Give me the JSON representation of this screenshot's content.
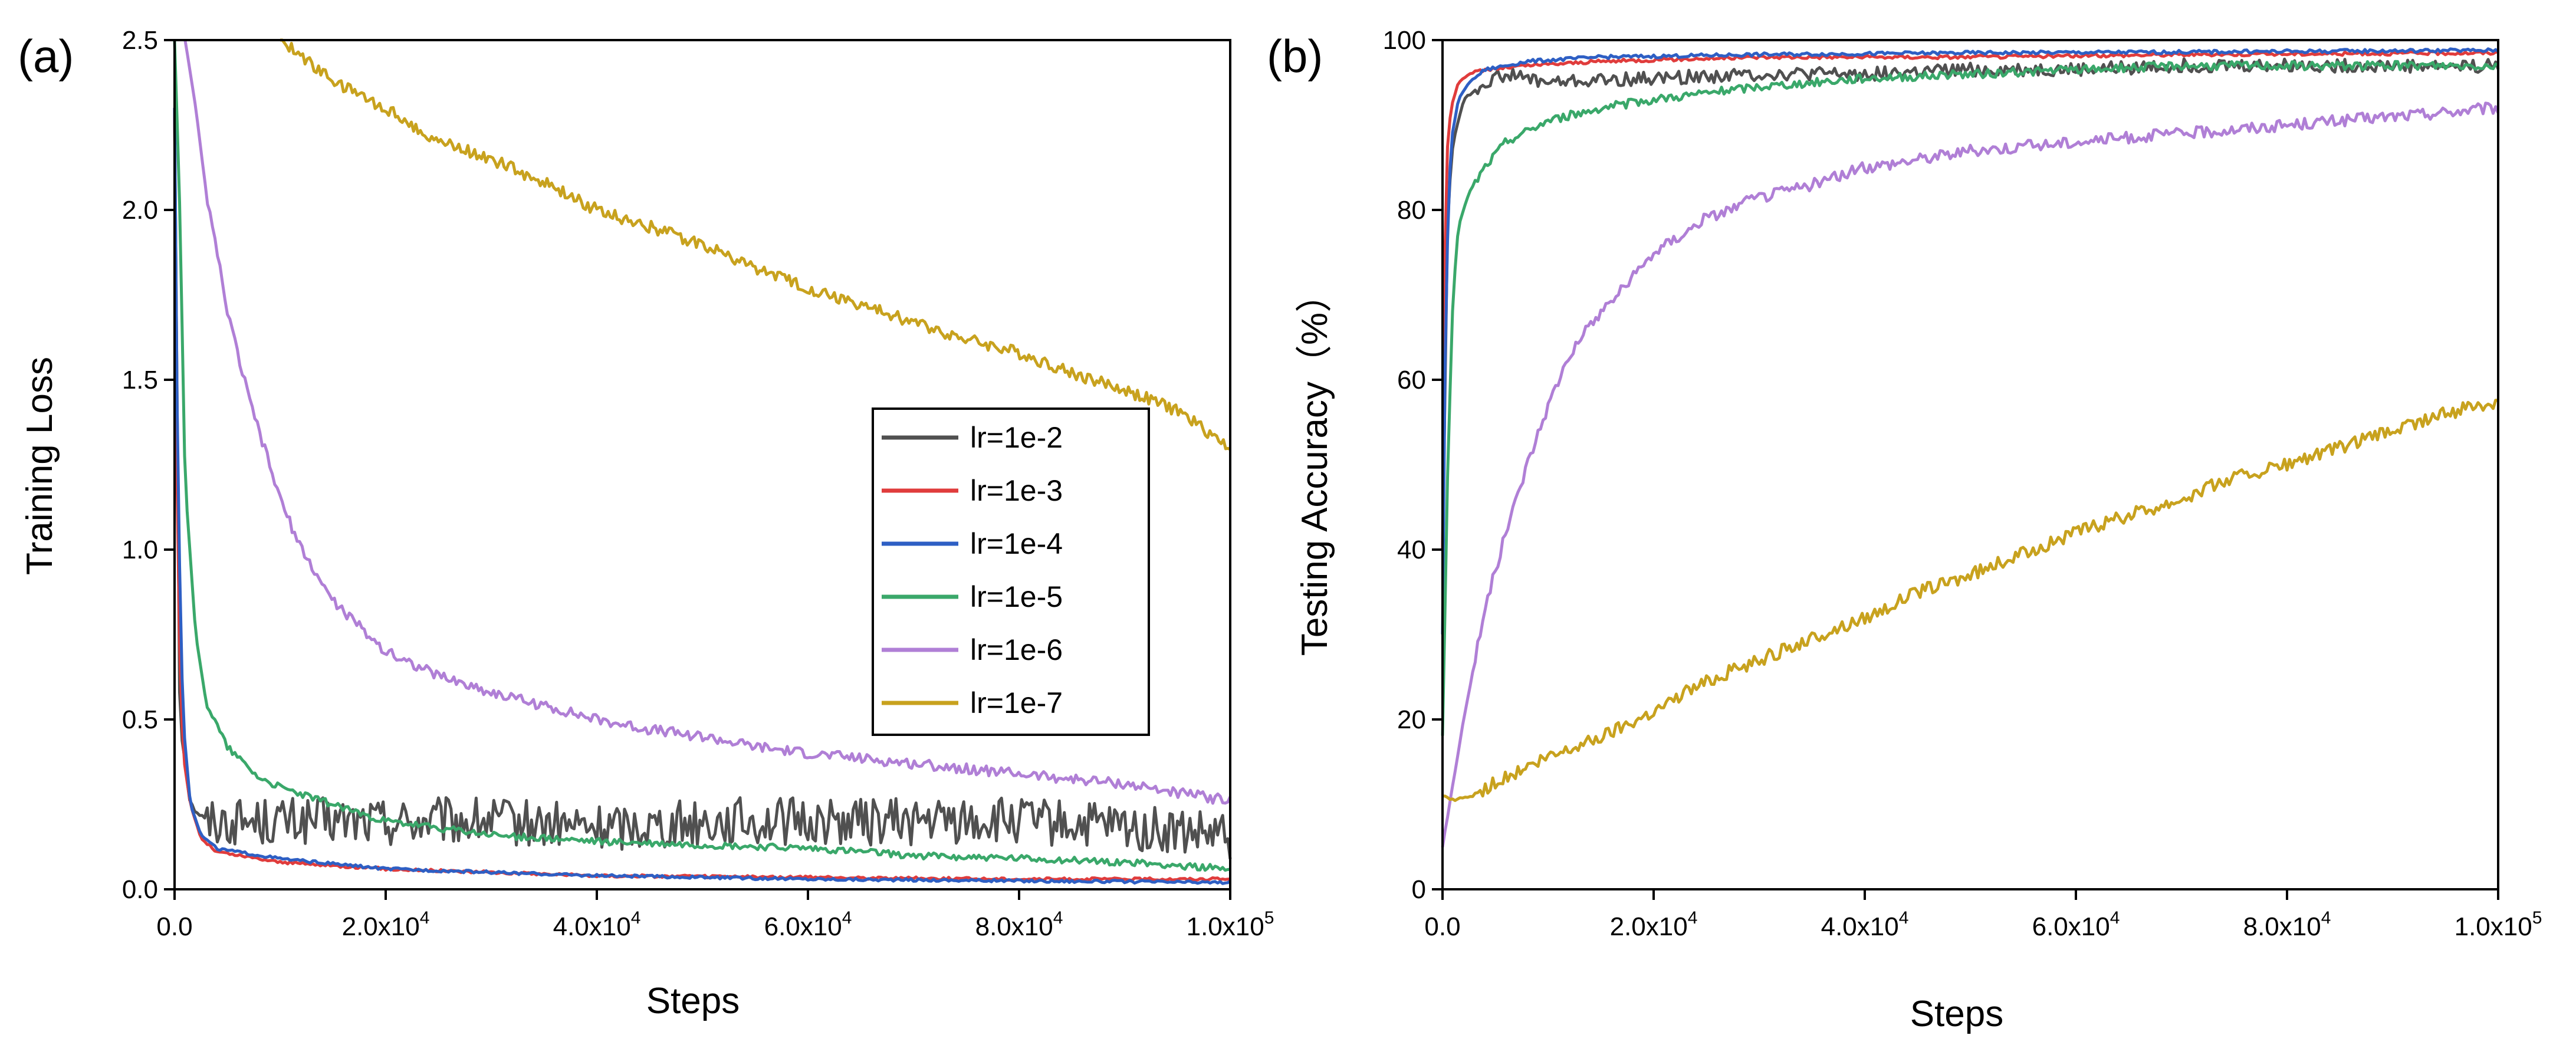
{
  "chart_data": [
    {
      "type": "line",
      "panel_label": "(a)",
      "title": "",
      "xlabel": "Steps",
      "ylabel": "Training Loss",
      "xlim": [
        0,
        100000
      ],
      "ylim": [
        0,
        2.5
      ],
      "x_ticks": [
        0,
        20000,
        40000,
        60000,
        80000,
        100000
      ],
      "x_tick_labels": [
        {
          "mantissa": "0.0",
          "exp": ""
        },
        {
          "mantissa": "2.0x10",
          "exp": "4"
        },
        {
          "mantissa": "4.0x10",
          "exp": "4"
        },
        {
          "mantissa": "6.0x10",
          "exp": "4"
        },
        {
          "mantissa": "8.0x10",
          "exp": "4"
        },
        {
          "mantissa": "1.0x10",
          "exp": "5"
        }
      ],
      "y_ticks": [
        0,
        0.5,
        1.0,
        1.5,
        2.0,
        2.5
      ],
      "y_tick_labels": [
        "0.0",
        "0.5",
        "1.0",
        "1.5",
        "2.0",
        "2.5"
      ],
      "legend_position": "center-right",
      "series": [
        {
          "name": "lr=1e-2",
          "color": "#505050",
          "x": [
            0,
            500,
            1500,
            3000,
            6000,
            10000,
            20000,
            30000,
            40000,
            50000,
            60000,
            70000,
            80000,
            90000,
            100000
          ],
          "y": [
            2.3,
            0.5,
            0.25,
            0.2,
            0.2,
            0.2,
            0.2,
            0.2,
            0.18,
            0.2,
            0.2,
            0.2,
            0.2,
            0.18,
            0.15
          ],
          "noise": 0.07
        },
        {
          "name": "lr=1e-3",
          "color": "#e03c3c",
          "x": [
            0,
            300,
            800,
            1500,
            2500,
            4000,
            6000,
            10000,
            20000,
            40000,
            60000,
            80000,
            100000
          ],
          "y": [
            2.3,
            0.9,
            0.4,
            0.25,
            0.15,
            0.11,
            0.1,
            0.08,
            0.06,
            0.04,
            0.035,
            0.03,
            0.03
          ],
          "noise": 0.004
        },
        {
          "name": "lr=1e-4",
          "color": "#2e5fc4",
          "x": [
            0,
            300,
            800,
            1500,
            2500,
            4000,
            6000,
            10000,
            20000,
            40000,
            60000,
            80000,
            100000
          ],
          "y": [
            2.3,
            1.2,
            0.5,
            0.25,
            0.16,
            0.12,
            0.11,
            0.09,
            0.06,
            0.04,
            0.03,
            0.025,
            0.02
          ],
          "noise": 0.004
        },
        {
          "name": "lr=1e-5",
          "color": "#3aa86a",
          "x": [
            0,
            500,
            1000,
            2000,
            3000,
            5000,
            8000,
            10000,
            15000,
            20000,
            30000,
            40000,
            50000,
            60000,
            70000,
            80000,
            90000,
            100000
          ],
          "y": [
            2.5,
            2.0,
            1.2,
            0.75,
            0.55,
            0.42,
            0.33,
            0.3,
            0.25,
            0.2,
            0.16,
            0.14,
            0.13,
            0.12,
            0.1,
            0.09,
            0.08,
            0.06
          ],
          "noise": 0.01
        },
        {
          "name": "lr=1e-6",
          "color": "#b07fd6",
          "x": [
            1000,
            2000,
            3000,
            5000,
            7000,
            10000,
            12000,
            15000,
            18000,
            20000,
            25000,
            30000,
            35000,
            40000,
            45000,
            50000,
            55000,
            60000,
            70000,
            80000,
            90000,
            100000
          ],
          "y": [
            2.5,
            2.3,
            2.05,
            1.7,
            1.45,
            1.15,
            1.0,
            0.85,
            0.76,
            0.7,
            0.63,
            0.58,
            0.54,
            0.5,
            0.47,
            0.45,
            0.42,
            0.4,
            0.37,
            0.34,
            0.31,
            0.26
          ],
          "noise": 0.015
        },
        {
          "name": "lr=1e-7",
          "color": "#c8a21e",
          "x": [
            10000,
            15000,
            20000,
            25000,
            30000,
            35000,
            40000,
            45000,
            50000,
            55000,
            60000,
            65000,
            70000,
            75000,
            80000,
            85000,
            90000,
            95000,
            100000
          ],
          "y": [
            2.5,
            2.38,
            2.3,
            2.2,
            2.15,
            2.08,
            2.0,
            1.95,
            1.9,
            1.83,
            1.77,
            1.72,
            1.67,
            1.62,
            1.58,
            1.52,
            1.47,
            1.41,
            1.3
          ],
          "noise": 0.018
        }
      ]
    },
    {
      "type": "line",
      "panel_label": "(b)",
      "title": "",
      "xlabel": "Steps",
      "ylabel": "Testing Accuracy（%）",
      "xlim": [
        0,
        100000
      ],
      "ylim": [
        0,
        100
      ],
      "x_ticks": [
        0,
        20000,
        40000,
        60000,
        80000,
        100000
      ],
      "x_tick_labels": [
        {
          "mantissa": "0.0",
          "exp": ""
        },
        {
          "mantissa": "2.0x10",
          "exp": "4"
        },
        {
          "mantissa": "4.0x10",
          "exp": "4"
        },
        {
          "mantissa": "6.0x10",
          "exp": "4"
        },
        {
          "mantissa": "8.0x10",
          "exp": "4"
        },
        {
          "mantissa": "1.0x10",
          "exp": "5"
        }
      ],
      "y_ticks": [
        0,
        20,
        40,
        60,
        80,
        100
      ],
      "y_tick_labels": [
        "0",
        "20",
        "40",
        "60",
        "80",
        "100"
      ],
      "series": [
        {
          "name": "lr=1e-2",
          "color": "#505050",
          "x": [
            0,
            500,
            1000,
            2000,
            4000,
            6000,
            10000,
            20000,
            30000,
            40000,
            50000,
            60000,
            70000,
            80000,
            90000,
            100000
          ],
          "y": [
            40,
            80,
            88,
            93,
            95,
            96,
            95,
            95.5,
            96,
            96,
            96.5,
            96.5,
            97,
            97,
            97,
            97
          ],
          "noise": 0.8
        },
        {
          "name": "lr=1e-3",
          "color": "#e03c3c",
          "x": [
            0,
            300,
            800,
            1500,
            2500,
            4000,
            8000,
            15000,
            30000,
            50000,
            70000,
            100000
          ],
          "y": [
            40,
            85,
            92,
            95,
            96,
            96.5,
            97,
            97.5,
            98,
            98,
            98.3,
            98.5
          ],
          "noise": 0.2
        },
        {
          "name": "lr=1e-4",
          "color": "#2e5fc4",
          "x": [
            0,
            300,
            800,
            1500,
            2500,
            4000,
            8000,
            15000,
            30000,
            50000,
            70000,
            100000
          ],
          "y": [
            30,
            70,
            88,
            93,
            95,
            96.5,
            97.5,
            98,
            98.3,
            98.5,
            98.6,
            98.8
          ],
          "noise": 0.2
        },
        {
          "name": "lr=1e-5",
          "color": "#3aa86a",
          "x": [
            0,
            500,
            1000,
            1500,
            2500,
            4000,
            6000,
            10000,
            15000,
            20000,
            30000,
            40000,
            50000,
            60000,
            70000,
            80000,
            90000,
            100000
          ],
          "y": [
            18,
            50,
            70,
            78,
            82,
            85,
            88,
            90.5,
            92,
            93,
            94.5,
            95.5,
            96,
            96.5,
            97,
            97,
            97,
            97
          ],
          "noise": 0.5
        },
        {
          "name": "lr=1e-6",
          "color": "#b07fd6",
          "x": [
            0,
            2000,
            4000,
            6000,
            8000,
            10000,
            12000,
            15000,
            18000,
            20000,
            25000,
            30000,
            35000,
            40000,
            45000,
            50000,
            60000,
            70000,
            80000,
            90000,
            100000
          ],
          "y": [
            5,
            20,
            33,
            42,
            50,
            57,
            63,
            68,
            72,
            75,
            79,
            81.5,
            83,
            85,
            86,
            87,
            88,
            89,
            90,
            91,
            92
          ],
          "noise": 0.7
        },
        {
          "name": "lr=1e-7",
          "color": "#c8a21e",
          "x": [
            0,
            1000,
            3000,
            5000,
            10000,
            15000,
            20000,
            25000,
            30000,
            35000,
            40000,
            45000,
            50000,
            55000,
            60000,
            65000,
            70000,
            75000,
            80000,
            85000,
            90000,
            95000,
            100000
          ],
          "y": [
            11,
            10.5,
            11,
            12.5,
            15.5,
            18,
            21,
            24.5,
            27,
            29.5,
            32,
            35,
            37,
            39.5,
            42,
            44,
            46,
            48.5,
            50,
            52,
            54,
            56,
            57.5
          ],
          "noise": 0.8
        }
      ]
    }
  ]
}
